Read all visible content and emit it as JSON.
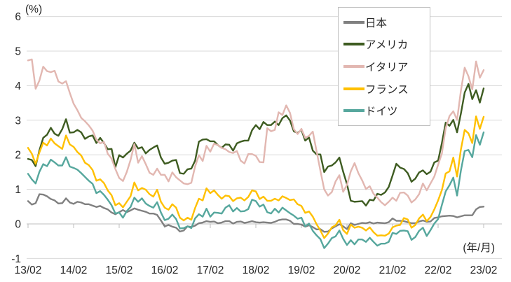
{
  "chart_data": {
    "type": "line",
    "title": "",
    "unit_label": "(%)",
    "x_axis_unit_label": "(年/月)",
    "x_start": "2013/02",
    "x_end": "2023/02",
    "x_interval": "monthly",
    "x_tick_labels": [
      "13/02",
      "14/02",
      "15/02",
      "16/02",
      "17/02",
      "18/02",
      "19/02",
      "20/02",
      "21/02",
      "22/02",
      "23/02"
    ],
    "ylim": [
      -1,
      6
    ],
    "y_ticks": [
      6,
      5,
      4,
      3,
      2,
      1,
      0,
      -1
    ],
    "grid": true,
    "legend_position": "top-right",
    "colors": {
      "grid": "#d9d9d9",
      "zero_axis": "#bfbfbf",
      "tick": "#bfbfbf",
      "text": "#262626",
      "legend_border": "#bfbfbf"
    },
    "series": [
      {
        "key": "japan",
        "name": "日本",
        "color": "#808080",
        "values": [
          0.66,
          0.56,
          0.6,
          0.86,
          0.85,
          0.8,
          0.72,
          0.68,
          0.59,
          0.6,
          0.74,
          0.62,
          0.58,
          0.64,
          0.62,
          0.57,
          0.57,
          0.53,
          0.49,
          0.52,
          0.46,
          0.42,
          0.33,
          0.28,
          0.34,
          0.4,
          0.34,
          0.39,
          0.45,
          0.41,
          0.38,
          0.35,
          0.3,
          0.3,
          0.26,
          0.1,
          -0.07,
          -0.03,
          -0.08,
          -0.11,
          -0.22,
          -0.19,
          -0.07,
          -0.09,
          -0.05,
          0.02,
          0.04,
          0.08,
          0.06,
          0.07,
          0.02,
          0.04,
          0.08,
          0.08,
          0.01,
          0.06,
          0.07,
          0.03,
          0.05,
          0.08,
          0.05,
          0.04,
          0.05,
          0.04,
          0.03,
          0.06,
          0.11,
          0.13,
          0.13,
          0.09,
          0.0,
          0.0,
          -0.02,
          -0.08,
          -0.04,
          -0.09,
          -0.16,
          -0.15,
          -0.23,
          -0.22,
          -0.13,
          -0.07,
          -0.01,
          -0.07,
          -0.15,
          0.02,
          -0.03,
          0.0,
          0.03,
          0.02,
          0.05,
          0.01,
          0.04,
          0.03,
          0.02,
          0.05,
          0.16,
          0.09,
          0.09,
          0.08,
          0.05,
          0.02,
          0.02,
          0.07,
          0.1,
          0.06,
          0.07,
          0.17,
          0.19,
          0.22,
          0.23,
          0.24,
          0.23,
          0.19,
          0.22,
          0.25,
          0.25,
          0.25,
          0.42,
          0.49,
          0.5
        ]
      },
      {
        "key": "usa",
        "name": "アメリカ",
        "color": "#3e5c21",
        "values": [
          1.88,
          1.85,
          1.67,
          2.13,
          2.49,
          2.58,
          2.78,
          2.61,
          2.55,
          2.74,
          3.03,
          2.64,
          2.65,
          2.72,
          2.65,
          2.46,
          2.53,
          2.56,
          2.34,
          2.49,
          2.34,
          2.16,
          2.17,
          1.64,
          1.99,
          1.92,
          2.03,
          2.12,
          2.35,
          2.18,
          2.22,
          2.04,
          2.14,
          2.21,
          2.27,
          1.92,
          1.74,
          1.77,
          1.83,
          1.85,
          1.47,
          1.45,
          1.58,
          1.6,
          1.83,
          2.38,
          2.44,
          2.45,
          2.39,
          2.39,
          2.28,
          2.2,
          2.3,
          2.29,
          2.12,
          2.33,
          2.38,
          2.41,
          2.41,
          2.71,
          2.86,
          2.74,
          2.95,
          2.86,
          2.86,
          2.96,
          2.86,
          3.06,
          3.14,
          2.99,
          2.68,
          2.63,
          2.72,
          2.41,
          2.5,
          2.12,
          2.01,
          2.01,
          1.5,
          1.66,
          1.69,
          1.78,
          1.92,
          1.51,
          1.15,
          0.67,
          0.64,
          0.65,
          0.66,
          0.53,
          0.7,
          0.68,
          0.87,
          0.84,
          0.91,
          1.07,
          1.4,
          1.74,
          1.63,
          1.59,
          1.47,
          1.22,
          1.31,
          1.49,
          1.55,
          1.44,
          1.51,
          1.78,
          1.83,
          2.34,
          2.93,
          2.84,
          3.01,
          2.65,
          3.19,
          3.8,
          4.05,
          3.61,
          3.87,
          3.51,
          3.92
        ]
      },
      {
        "key": "italy",
        "name": "イタリア",
        "color": "#e2b7b1",
        "values": [
          4.73,
          4.76,
          3.91,
          4.15,
          4.55,
          4.42,
          4.39,
          4.43,
          4.12,
          4.06,
          4.13,
          3.79,
          3.48,
          3.29,
          3.07,
          2.97,
          2.85,
          2.7,
          2.44,
          2.33,
          2.37,
          2.03,
          1.89,
          1.59,
          1.33,
          1.24,
          1.5,
          1.85,
          2.31,
          1.77,
          1.96,
          1.73,
          1.48,
          1.42,
          1.6,
          1.42,
          1.42,
          1.23,
          1.49,
          1.35,
          1.26,
          1.17,
          1.15,
          1.19,
          1.66,
          1.99,
          1.82,
          2.26,
          2.09,
          2.32,
          2.28,
          2.2,
          2.16,
          2.08,
          2.05,
          2.11,
          1.83,
          1.75,
          2.02,
          2.02,
          1.97,
          1.79,
          1.78,
          2.77,
          2.68,
          2.72,
          3.23,
          3.15,
          3.43,
          3.21,
          2.74,
          2.6,
          2.75,
          2.49,
          2.55,
          2.67,
          2.1,
          1.54,
          1.0,
          0.82,
          0.92,
          1.23,
          1.41,
          0.93,
          1.13,
          1.52,
          1.76,
          1.47,
          1.26,
          1.01,
          1.09,
          0.87,
          0.76,
          0.63,
          0.54,
          0.64,
          0.76,
          0.67,
          0.9,
          0.91,
          0.82,
          0.62,
          0.71,
          0.86,
          1.17,
          0.97,
          1.17,
          1.37,
          1.71,
          2.04,
          2.77,
          3.12,
          3.26,
          3.01,
          3.85,
          4.52,
          4.27,
          3.89,
          4.7,
          4.23,
          4.45
        ]
      },
      {
        "key": "france",
        "name": "フランス",
        "color": "#ffc000",
        "values": [
          2.2,
          2.03,
          1.74,
          2.07,
          2.35,
          2.27,
          2.47,
          2.33,
          2.25,
          2.17,
          2.56,
          2.3,
          2.23,
          2.08,
          1.98,
          1.77,
          1.7,
          1.56,
          1.25,
          1.29,
          1.18,
          0.97,
          0.83,
          0.54,
          0.6,
          0.48,
          0.64,
          0.8,
          1.2,
          0.97,
          1.04,
          0.99,
          0.86,
          0.79,
          0.99,
          0.64,
          0.47,
          0.41,
          0.57,
          0.47,
          0.18,
          0.1,
          0.18,
          0.12,
          0.46,
          0.73,
          0.68,
          1.03,
          0.89,
          0.97,
          0.84,
          0.73,
          0.82,
          0.8,
          0.66,
          0.74,
          0.76,
          0.68,
          0.78,
          0.97,
          0.94,
          0.72,
          0.79,
          0.67,
          0.67,
          0.73,
          0.68,
          0.8,
          0.75,
          0.69,
          0.71,
          0.57,
          0.52,
          0.32,
          0.36,
          0.21,
          -0.01,
          -0.19,
          -0.41,
          -0.28,
          -0.1,
          -0.04,
          0.12,
          -0.18,
          -0.29,
          -0.02,
          -0.11,
          -0.08,
          -0.11,
          -0.19,
          -0.1,
          -0.24,
          -0.34,
          -0.33,
          -0.34,
          -0.28,
          -0.1,
          -0.05,
          -0.03,
          0.17,
          0.13,
          -0.11,
          -0.03,
          0.16,
          0.27,
          0.08,
          0.2,
          0.42,
          0.68,
          0.98,
          1.46,
          1.52,
          1.92,
          1.37,
          2.15,
          2.72,
          2.62,
          2.34,
          3.11,
          2.75,
          3.1
        ]
      },
      {
        "key": "germany",
        "name": "ドイツ",
        "color": "#56a79d",
        "values": [
          1.45,
          1.29,
          1.17,
          1.51,
          1.73,
          1.67,
          1.86,
          1.78,
          1.69,
          1.69,
          1.93,
          1.66,
          1.62,
          1.57,
          1.47,
          1.36,
          1.25,
          1.16,
          0.89,
          0.95,
          0.84,
          0.7,
          0.54,
          0.3,
          0.33,
          0.18,
          0.37,
          0.49,
          0.76,
          0.64,
          0.74,
          0.59,
          0.52,
          0.47,
          0.63,
          0.33,
          0.11,
          0.15,
          0.27,
          0.14,
          -0.13,
          -0.12,
          -0.07,
          -0.12,
          0.16,
          0.28,
          0.21,
          0.44,
          0.21,
          0.33,
          0.32,
          0.3,
          0.47,
          0.54,
          0.36,
          0.46,
          0.36,
          0.37,
          0.43,
          0.7,
          0.66,
          0.5,
          0.56,
          0.34,
          0.3,
          0.44,
          0.33,
          0.47,
          0.39,
          0.31,
          0.24,
          0.15,
          0.18,
          -0.07,
          0.01,
          -0.2,
          -0.33,
          -0.44,
          -0.7,
          -0.57,
          -0.41,
          -0.36,
          -0.19,
          -0.43,
          -0.61,
          -0.47,
          -0.59,
          -0.45,
          -0.45,
          -0.52,
          -0.4,
          -0.52,
          -0.63,
          -0.57,
          -0.57,
          -0.52,
          -0.26,
          -0.29,
          -0.2,
          -0.19,
          -0.21,
          -0.46,
          -0.38,
          -0.2,
          -0.11,
          -0.35,
          -0.18,
          0.01,
          0.14,
          0.55,
          0.94,
          1.12,
          1.34,
          0.82,
          1.54,
          2.11,
          2.14,
          1.93,
          2.57,
          2.29,
          2.65
        ]
      }
    ]
  }
}
